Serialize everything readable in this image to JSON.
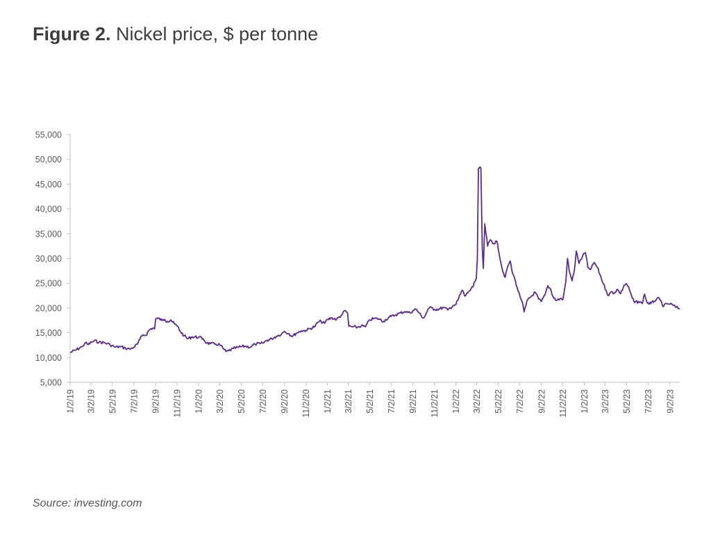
{
  "title": {
    "bold": "Figure 2.",
    "rest": " Nickel price, $ per tonne"
  },
  "source": {
    "label": "Source:",
    "text": " investing.com"
  },
  "colors": {
    "line": "#5b2a86",
    "axis": "#bfbfbf",
    "text": "#595959"
  },
  "chart_data": {
    "type": "line",
    "title": "Nickel price, $ per tonne",
    "xlabel": "",
    "ylabel": "",
    "ylim": [
      5000,
      55000
    ],
    "xlim": [
      "2019-01-02",
      "2023-09-30"
    ],
    "grid": false,
    "yticks": [
      "5,000",
      "10,000",
      "15,000",
      "20,000",
      "25,000",
      "30,000",
      "35,000",
      "40,000",
      "45,000",
      "50,000",
      "55,000"
    ],
    "xticks": [
      {
        "date": "2019-01-02",
        "label": "1/2/19"
      },
      {
        "date": "2019-03-02",
        "label": "3/2/19"
      },
      {
        "date": "2019-05-02",
        "label": "5/2/19"
      },
      {
        "date": "2019-07-02",
        "label": "7/2/19"
      },
      {
        "date": "2019-09-02",
        "label": "9/2/19"
      },
      {
        "date": "2019-11-02",
        "label": "11/2/19"
      },
      {
        "date": "2020-01-02",
        "label": "1/2/20"
      },
      {
        "date": "2020-03-02",
        "label": "3/2/20"
      },
      {
        "date": "2020-05-02",
        "label": "5/2/20"
      },
      {
        "date": "2020-07-02",
        "label": "7/2/20"
      },
      {
        "date": "2020-09-02",
        "label": "9/2/20"
      },
      {
        "date": "2020-11-02",
        "label": "11/2/20"
      },
      {
        "date": "2021-01-02",
        "label": "1/2/21"
      },
      {
        "date": "2021-03-02",
        "label": "3/2/21"
      },
      {
        "date": "2021-05-02",
        "label": "5/2/21"
      },
      {
        "date": "2021-07-02",
        "label": "7/2/21"
      },
      {
        "date": "2021-09-02",
        "label": "9/2/21"
      },
      {
        "date": "2021-11-02",
        "label": "11/2/21"
      },
      {
        "date": "2022-01-02",
        "label": "1/2/22"
      },
      {
        "date": "2022-03-02",
        "label": "3/2/22"
      },
      {
        "date": "2022-05-02",
        "label": "5/2/22"
      },
      {
        "date": "2022-07-02",
        "label": "7/2/22"
      },
      {
        "date": "2022-09-02",
        "label": "9/2/22"
      },
      {
        "date": "2022-11-02",
        "label": "11/2/22"
      },
      {
        "date": "2023-01-02",
        "label": "1/2/23"
      },
      {
        "date": "2023-03-02",
        "label": "3/2/23"
      },
      {
        "date": "2023-05-02",
        "label": "5/2/23"
      },
      {
        "date": "2023-07-02",
        "label": "7/2/23"
      },
      {
        "date": "2023-09-02",
        "label": "9/2/23"
      }
    ],
    "series": [
      {
        "points": [
          [
            "2019-01-02",
            11000
          ],
          [
            "2019-01-20",
            11600
          ],
          [
            "2019-02-05",
            12200
          ],
          [
            "2019-02-14",
            13000
          ],
          [
            "2019-02-22",
            12600
          ],
          [
            "2019-03-04",
            13100
          ],
          [
            "2019-03-12",
            13400
          ],
          [
            "2019-03-25",
            13100
          ],
          [
            "2019-04-10",
            13000
          ],
          [
            "2019-04-25",
            12600
          ],
          [
            "2019-05-10",
            12100
          ],
          [
            "2019-05-25",
            12200
          ],
          [
            "2019-06-08",
            11900
          ],
          [
            "2019-06-20",
            11700
          ],
          [
            "2019-07-02",
            12100
          ],
          [
            "2019-07-12",
            12700
          ],
          [
            "2019-07-20",
            13800
          ],
          [
            "2019-07-28",
            14600
          ],
          [
            "2019-08-05",
            14500
          ],
          [
            "2019-08-15",
            15600
          ],
          [
            "2019-08-25",
            16000
          ],
          [
            "2019-08-30",
            15800
          ],
          [
            "2019-09-02",
            17800
          ],
          [
            "2019-09-10",
            17900
          ],
          [
            "2019-09-20",
            17500
          ],
          [
            "2019-09-28",
            17700
          ],
          [
            "2019-10-05",
            17300
          ],
          [
            "2019-10-15",
            17600
          ],
          [
            "2019-10-25",
            16800
          ],
          [
            "2019-11-02",
            16400
          ],
          [
            "2019-11-12",
            15200
          ],
          [
            "2019-11-22",
            14400
          ],
          [
            "2019-12-02",
            13800
          ],
          [
            "2019-12-15",
            14200
          ],
          [
            "2020-01-02",
            14100
          ],
          [
            "2020-01-15",
            13800
          ],
          [
            "2020-01-25",
            12900
          ],
          [
            "2020-02-05",
            12800
          ],
          [
            "2020-02-20",
            12700
          ],
          [
            "2020-03-02",
            12600
          ],
          [
            "2020-03-12",
            11800
          ],
          [
            "2020-03-20",
            11200
          ],
          [
            "2020-03-28",
            11400
          ],
          [
            "2020-04-10",
            11800
          ],
          [
            "2020-04-25",
            12100
          ],
          [
            "2020-05-02",
            12200
          ],
          [
            "2020-05-15",
            12300
          ],
          [
            "2020-05-28",
            12100
          ],
          [
            "2020-06-10",
            12700
          ],
          [
            "2020-06-25",
            12800
          ],
          [
            "2020-07-02",
            12900
          ],
          [
            "2020-07-15",
            13500
          ],
          [
            "2020-07-28",
            13800
          ],
          [
            "2020-08-10",
            14300
          ],
          [
            "2020-08-25",
            14800
          ],
          [
            "2020-09-02",
            15300
          ],
          [
            "2020-09-15",
            14800
          ],
          [
            "2020-09-25",
            14300
          ],
          [
            "2020-10-05",
            14900
          ],
          [
            "2020-10-20",
            15400
          ],
          [
            "2020-11-02",
            15500
          ],
          [
            "2020-11-15",
            15900
          ],
          [
            "2020-11-28",
            16300
          ],
          [
            "2020-12-05",
            17100
          ],
          [
            "2020-12-15",
            17300
          ],
          [
            "2020-12-25",
            16900
          ],
          [
            "2021-01-02",
            17700
          ],
          [
            "2021-01-15",
            18000
          ],
          [
            "2021-01-28",
            17700
          ],
          [
            "2021-02-10",
            18500
          ],
          [
            "2021-02-22",
            19500
          ],
          [
            "2021-02-28",
            19000
          ],
          [
            "2021-03-04",
            16300
          ],
          [
            "2021-03-15",
            16200
          ],
          [
            "2021-03-28",
            16100
          ],
          [
            "2021-04-08",
            16400
          ],
          [
            "2021-04-20",
            16200
          ],
          [
            "2021-05-02",
            17600
          ],
          [
            "2021-05-15",
            17900
          ],
          [
            "2021-05-28",
            17800
          ],
          [
            "2021-06-10",
            17300
          ],
          [
            "2021-06-25",
            18100
          ],
          [
            "2021-07-02",
            18300
          ],
          [
            "2021-07-15",
            18600
          ],
          [
            "2021-07-28",
            19000
          ],
          [
            "2021-08-10",
            19300
          ],
          [
            "2021-08-25",
            19000
          ],
          [
            "2021-09-02",
            19500
          ],
          [
            "2021-09-10",
            19800
          ],
          [
            "2021-09-20",
            19000
          ],
          [
            "2021-09-28",
            18100
          ],
          [
            "2021-10-05",
            18200
          ],
          [
            "2021-10-15",
            19800
          ],
          [
            "2021-10-25",
            20100
          ],
          [
            "2021-11-02",
            19700
          ],
          [
            "2021-11-15",
            19800
          ],
          [
            "2021-11-28",
            20100
          ],
          [
            "2021-12-10",
            19600
          ],
          [
            "2021-12-25",
            20500
          ],
          [
            "2022-01-02",
            20700
          ],
          [
            "2022-01-10",
            22000
          ],
          [
            "2022-01-20",
            23600
          ],
          [
            "2022-01-28",
            22400
          ],
          [
            "2022-02-08",
            23400
          ],
          [
            "2022-02-20",
            24300
          ],
          [
            "2022-03-01",
            26000
          ],
          [
            "2022-03-04",
            30000
          ],
          [
            "2022-03-07",
            48200
          ],
          [
            "2022-03-14",
            48200
          ],
          [
            "2022-03-18",
            32000
          ],
          [
            "2022-03-21",
            28000
          ],
          [
            "2022-03-25",
            37000
          ],
          [
            "2022-04-02",
            32500
          ],
          [
            "2022-04-10",
            33800
          ],
          [
            "2022-04-20",
            33000
          ],
          [
            "2022-04-28",
            33500
          ],
          [
            "2022-05-05",
            31000
          ],
          [
            "2022-05-15",
            27500
          ],
          [
            "2022-05-22",
            26200
          ],
          [
            "2022-05-30",
            28500
          ],
          [
            "2022-06-05",
            29500
          ],
          [
            "2022-06-12",
            27000
          ],
          [
            "2022-06-20",
            25500
          ],
          [
            "2022-06-28",
            23400
          ],
          [
            "2022-07-08",
            21500
          ],
          [
            "2022-07-15",
            19200
          ],
          [
            "2022-07-25",
            21700
          ],
          [
            "2022-08-05",
            22400
          ],
          [
            "2022-08-15",
            23200
          ],
          [
            "2022-08-25",
            21800
          ],
          [
            "2022-09-02",
            21300
          ],
          [
            "2022-09-12",
            22600
          ],
          [
            "2022-09-20",
            24500
          ],
          [
            "2022-09-28",
            23800
          ],
          [
            "2022-10-05",
            22300
          ],
          [
            "2022-10-15",
            21500
          ],
          [
            "2022-10-25",
            21900
          ],
          [
            "2022-11-02",
            21700
          ],
          [
            "2022-11-10",
            25200
          ],
          [
            "2022-11-15",
            30000
          ],
          [
            "2022-11-20",
            27500
          ],
          [
            "2022-11-28",
            25500
          ],
          [
            "2022-12-05",
            27800
          ],
          [
            "2022-12-10",
            31500
          ],
          [
            "2022-12-18",
            29000
          ],
          [
            "2022-12-28",
            30500
          ],
          [
            "2023-01-05",
            31200
          ],
          [
            "2023-01-12",
            28200
          ],
          [
            "2023-01-20",
            27800
          ],
          [
            "2023-01-30",
            29200
          ],
          [
            "2023-02-08",
            28200
          ],
          [
            "2023-02-15",
            26800
          ],
          [
            "2023-02-25",
            24900
          ],
          [
            "2023-03-05",
            23500
          ],
          [
            "2023-03-12",
            22500
          ],
          [
            "2023-03-20",
            23300
          ],
          [
            "2023-03-28",
            23000
          ],
          [
            "2023-04-05",
            23800
          ],
          [
            "2023-04-15",
            22900
          ],
          [
            "2023-04-25",
            24600
          ],
          [
            "2023-05-02",
            24900
          ],
          [
            "2023-05-10",
            23700
          ],
          [
            "2023-05-18",
            22000
          ],
          [
            "2023-05-25",
            21100
          ],
          [
            "2023-06-05",
            21300
          ],
          [
            "2023-06-15",
            20900
          ],
          [
            "2023-06-22",
            22800
          ],
          [
            "2023-06-30",
            21000
          ],
          [
            "2023-07-10",
            20900
          ],
          [
            "2023-07-20",
            21400
          ],
          [
            "2023-07-28",
            22000
          ],
          [
            "2023-08-05",
            21600
          ],
          [
            "2023-08-15",
            20300
          ],
          [
            "2023-08-25",
            20900
          ],
          [
            "2023-09-02",
            20800
          ],
          [
            "2023-09-10",
            20600
          ],
          [
            "2023-09-20",
            20100
          ],
          [
            "2023-09-30",
            19900
          ]
        ]
      }
    ]
  }
}
